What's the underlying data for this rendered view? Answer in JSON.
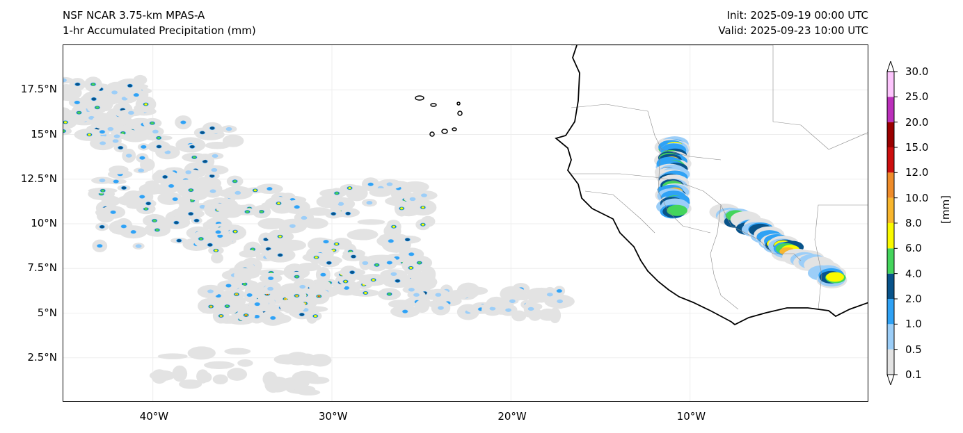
{
  "header": {
    "model": "NSF NCAR 3.75-km MPAS-A",
    "field": "1-hr Accumulated Precipitation (mm)",
    "init": "Init: 2025-09-19 00:00 UTC",
    "valid": "Valid: 2025-09-23 10:00 UTC"
  },
  "axes": {
    "lon_ticks": [
      "40°W",
      "30°W",
      "20°W",
      "10°W"
    ],
    "lat_ticks": [
      "17.5°N",
      "15°N",
      "12.5°N",
      "10°N",
      "7.5°N",
      "5°N",
      "2.5°N"
    ],
    "lon_range": [
      -45,
      0
    ],
    "lat_range": [
      0,
      20
    ]
  },
  "colorbar": {
    "label": "[mm]",
    "levels": [
      "0.1",
      "0.5",
      "1.0",
      "2.0",
      "4.0",
      "6.0",
      "8.0",
      "10.0",
      "12.0",
      "15.0",
      "20.0",
      "25.0",
      "30.0"
    ],
    "colors": [
      "#e3e3e3",
      "#9ccef8",
      "#2fa2f5",
      "#08538a",
      "#44d55c",
      "#fafa00",
      "#f8b62e",
      "#ef8c2a",
      "#cc0e0e",
      "#9a0000",
      "#bb30bb",
      "#fdc5fd"
    ]
  }
}
